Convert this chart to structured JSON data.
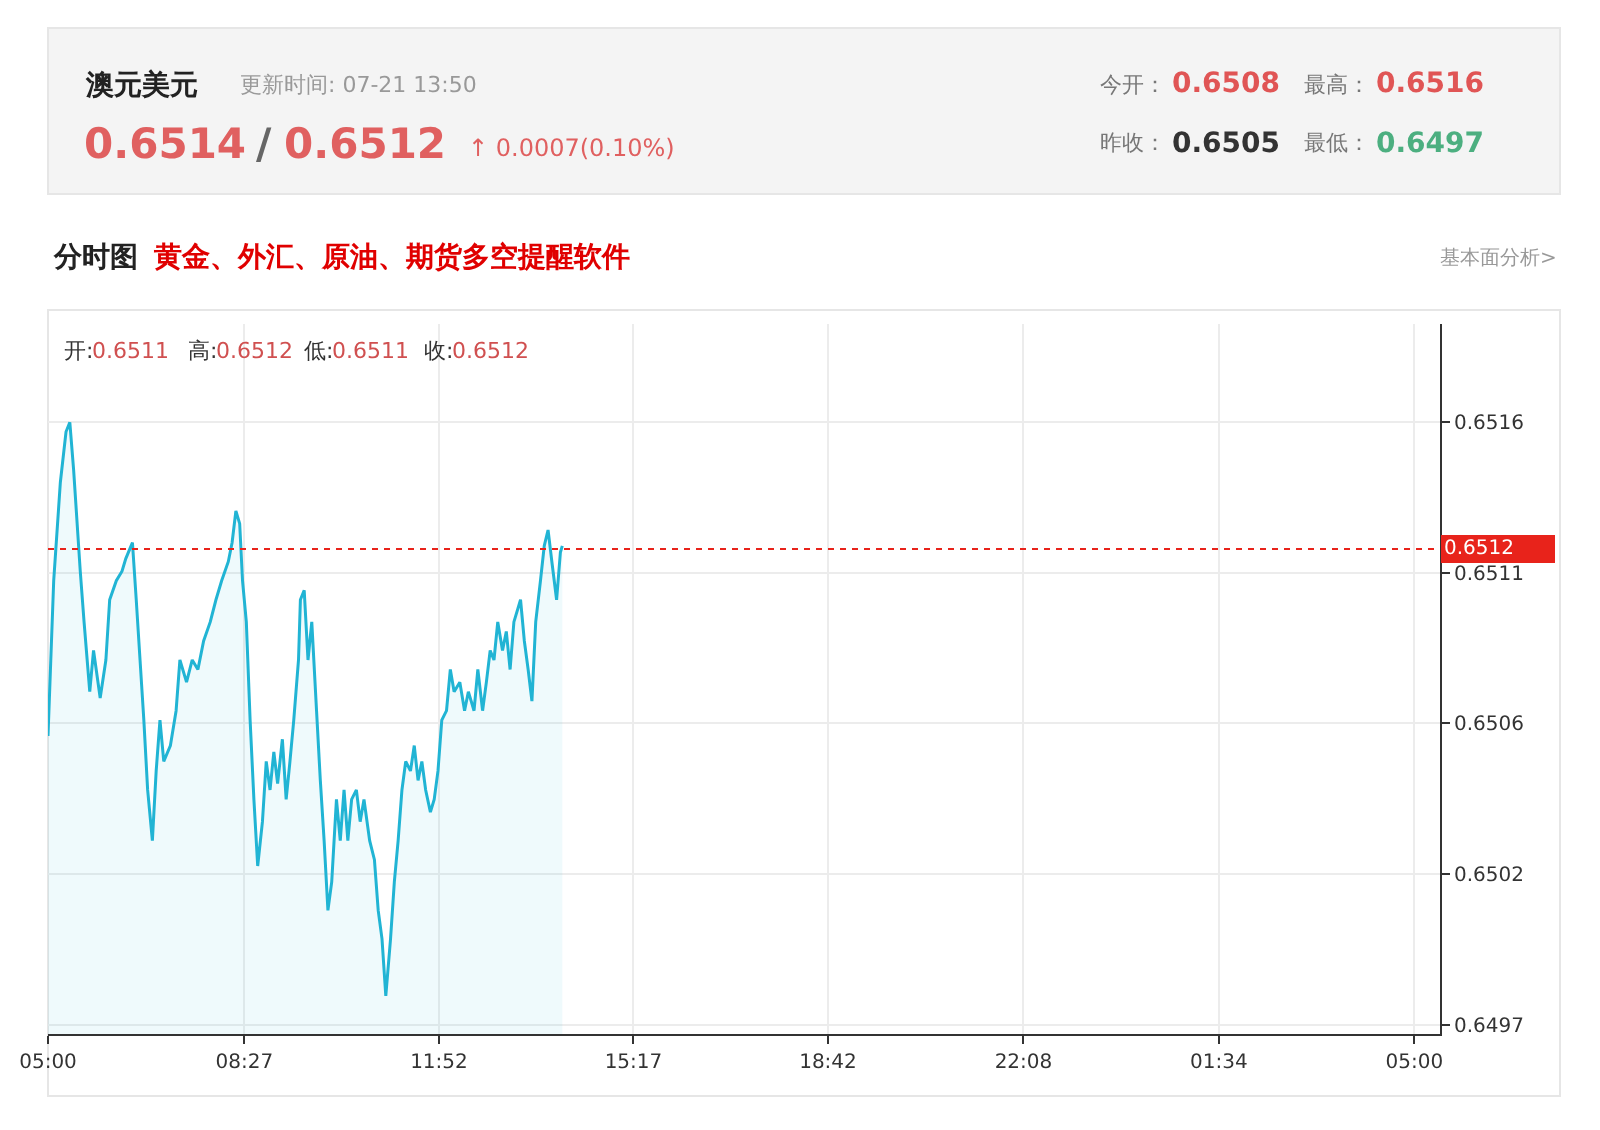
{
  "chart_data": {
    "type": "area",
    "title": "澳元美元",
    "annotations": [
      "更新时间: 07-21 13:50",
      "0.6514",
      "/",
      "0.6512",
      "↑ 0.0007(0.10%)",
      "今开：",
      "0.6508",
      "最高：",
      "0.6516",
      "昨收：",
      "0.6505",
      "最低：",
      "0.6497",
      "分时图",
      "黄金、外汇、原油、期货多空提醒软件",
      "基本面分析>",
      "开:",
      "0.6511",
      "高:",
      "0.6512",
      "低:",
      "0.6511",
      "收:",
      "0.6512"
    ],
    "x": [
      "--07-21T05:00",
      "--07-21T05:06",
      "--07-21T05:13",
      "--07-21T05:19",
      "--07-21T05:23",
      "--07-21T05:27",
      "--07-21T05:34",
      "--07-21T05:38",
      "--07-21T05:44",
      "--07-21T05:48",
      "--07-21T05:55",
      "--07-21T06:01",
      "--07-21T06:05",
      "--07-21T06:12",
      "--07-21T06:18",
      "--07-21T06:22",
      "--07-21T06:29",
      "--07-21T06:33",
      "--07-21T06:37",
      "--07-21T06:41",
      "--07-21T06:45",
      "--07-21T06:50",
      "--07-21T06:54",
      "--07-21T06:58",
      "--07-21T07:02",
      "--07-21T07:09",
      "--07-21T07:15",
      "--07-21T07:19",
      "--07-21T07:26",
      "--07-21T07:32",
      "--07-21T07:38",
      "--07-21T07:44",
      "--07-21T07:51",
      "--07-21T07:57",
      "--07-21T08:03",
      "--07-21T08:10",
      "--07-21T08:14",
      "--07-21T08:18",
      "--07-21T08:22",
      "--07-21T08:25",
      "--07-21T08:29",
      "--07-21T08:33",
      "--07-21T08:37",
      "--07-21T08:41",
      "--07-21T08:46",
      "--07-21T08:50",
      "--07-21T08:54",
      "--07-21T08:58",
      "--07-21T09:02",
      "--07-21T09:07",
      "--07-21T09:11",
      "--07-21T09:15",
      "--07-21T09:19",
      "--07-21T09:24",
      "--07-21T09:26",
      "--07-21T09:30",
      "--07-21T09:34",
      "--07-21T09:38",
      "--07-21T09:43",
      "--07-21T09:47",
      "--07-21T09:51",
      "--07-21T09:55",
      "--07-21T09:59",
      "--07-21T10:04",
      "--07-21T10:08",
      "--07-21T10:12",
      "--07-21T10:16",
      "--07-21T10:20",
      "--07-21T10:25",
      "--07-21T10:29",
      "--07-21T10:33",
      "--07-21T10:39",
      "--07-21T10:44",
      "--07-21T10:48",
      "--07-21T10:52",
      "--07-21T10:56",
      "--07-21T11:01",
      "--07-21T11:05",
      "--07-21T11:09",
      "--07-21T11:13",
      "--07-21T11:17",
      "--07-21T11:22",
      "--07-21T11:26",
      "--07-21T11:30",
      "--07-21T11:34",
      "--07-21T11:38",
      "--07-21T11:43",
      "--07-21T11:47",
      "--07-21T11:51",
      "--07-21T11:55",
      "--07-21T12:00",
      "--07-21T12:04",
      "--07-21T12:08",
      "--07-21T12:14",
      "--07-21T12:19",
      "--07-21T12:23",
      "--07-21T12:29",
      "--07-21T12:33",
      "--07-21T12:38",
      "--07-21T12:42",
      "--07-21T12:46",
      "--07-21T12:50",
      "--07-21T12:54",
      "--07-21T12:59",
      "--07-21T13:03",
      "--07-21T13:07",
      "--07-21T13:11",
      "--07-21T13:18",
      "--07-21T13:22",
      "--07-21T13:26",
      "--07-21T13:30",
      "--07-21T13:34",
      "--07-21T13:39",
      "--07-21T13:43",
      "--07-21T13:47",
      "--07-21T13:51",
      "--07-21T13:56",
      "--07-21T14:00",
      "--07-21T14:02"
    ],
    "series": [
      {
        "color": "#21b4d4",
        "values": [
          0.65061,
          0.6511,
          0.65141,
          0.65157,
          0.6516,
          0.65145,
          0.65113,
          0.65097,
          0.65075,
          0.65088,
          0.65073,
          0.65085,
          0.65104,
          0.6511,
          0.65113,
          0.65117,
          0.65122,
          0.65104,
          0.65085,
          0.65066,
          0.65044,
          0.65028,
          0.6505,
          0.65066,
          0.65053,
          0.65058,
          0.65069,
          0.65085,
          0.65078,
          0.65085,
          0.65082,
          0.65091,
          0.65097,
          0.65104,
          0.6511,
          0.65116,
          0.65122,
          0.65132,
          0.65128,
          0.6511,
          0.65097,
          0.65066,
          0.65041,
          0.6502,
          0.65034,
          0.65053,
          0.65044,
          0.65056,
          0.65046,
          0.6506,
          0.65041,
          0.65053,
          0.65066,
          0.65085,
          0.65104,
          0.65107,
          0.65085,
          0.65097,
          0.65069,
          0.65047,
          0.65028,
          0.65006,
          0.65015,
          0.65041,
          0.65028,
          0.65044,
          0.65028,
          0.65041,
          0.65044,
          0.65034,
          0.65041,
          0.65028,
          0.65022,
          0.65006,
          0.64997,
          0.64979,
          0.64997,
          0.65015,
          0.65028,
          0.65044,
          0.65053,
          0.6505,
          0.65058,
          0.65047,
          0.65053,
          0.65044,
          0.65037,
          0.65041,
          0.6505,
          0.65066,
          0.65069,
          0.65082,
          0.65075,
          0.65078,
          0.65069,
          0.65075,
          0.65069,
          0.65082,
          0.65069,
          0.65078,
          0.65088,
          0.65085,
          0.65097,
          0.65088,
          0.65094,
          0.65082,
          0.65097,
          0.65104,
          0.65091,
          0.65082,
          0.65072,
          0.65097,
          0.6511,
          0.65121,
          0.65126,
          0.65116,
          0.65104,
          0.65119,
          0.65121
        ]
      }
    ],
    "xlim": [
      "--07-21T05:00",
      "--07-22T05:27"
    ],
    "xticks": [
      {
        "value": "--07-21T05:00",
        "label": "05:00"
      },
      {
        "value": "--07-21T08:27",
        "label": "08:27"
      },
      {
        "value": "--07-21T11:52",
        "label": "11:52"
      },
      {
        "value": "--07-21T15:17",
        "label": "15:17"
      },
      {
        "value": "--07-21T18:42",
        "label": "18:42"
      },
      {
        "value": "--07-21T22:08",
        "label": "22:08"
      },
      {
        "value": "--07-22T01:34",
        "label": "01:34"
      },
      {
        "value": "--07-22T05:00",
        "label": "05:00"
      }
    ],
    "ylim": [
      0.64967,
      0.65191
    ],
    "yticks": [
      {
        "value": 0.6497,
        "label": "0.6497"
      },
      {
        "value": 0.650175,
        "label": "0.6502"
      },
      {
        "value": 0.65065,
        "label": "0.6506"
      },
      {
        "value": 0.651125,
        "label": "0.6511"
      },
      {
        "value": 0.6516,
        "label": "0.6516"
      }
    ],
    "ref_lines": [
      {
        "axis": "y",
        "value": 0.6512,
        "label": "0.6512",
        "color": "#e8231b",
        "line_style": "dotted"
      }
    ],
    "grid": true
  }
}
